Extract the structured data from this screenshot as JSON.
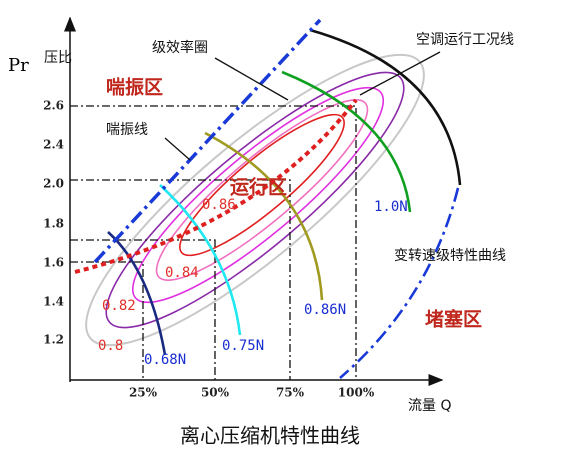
{
  "y_axis": {
    "symbol": "Pr",
    "label": "压比",
    "ticks": [
      "2.6",
      "2.4",
      "2.0",
      "1.8",
      "1.6",
      "1.4",
      "1.2"
    ]
  },
  "x_axis": {
    "label": "流量 Q",
    "ticks": [
      "25%",
      "50%",
      "75%",
      "100%"
    ]
  },
  "regions": {
    "surge": "喘振区",
    "operating": "运行区",
    "choke": "堵塞区"
  },
  "annotations": {
    "surge_line": "喘振线",
    "efficiency": "级效率圈",
    "ac_line": "空调运行工况线",
    "speed_curves": "变转速级特性曲线"
  },
  "efficiency_labels": [
    "0.86",
    "0.84",
    "0.82",
    "0.8"
  ],
  "speed_labels": [
    "0.68N",
    "0.75N",
    "0.86N",
    "1.0N"
  ],
  "title": "离心压缩机特性曲线"
}
